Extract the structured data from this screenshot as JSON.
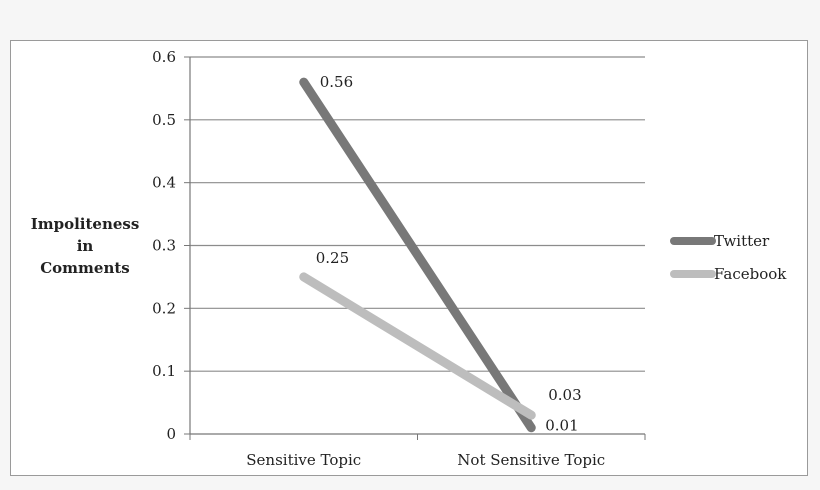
{
  "chart_data": {
    "type": "line",
    "categories": [
      "Sensitive Topic",
      "Not Sensitive Topic"
    ],
    "series": [
      {
        "name": "Twitter",
        "values": [
          0.56,
          0.01
        ],
        "color": "#787878"
      },
      {
        "name": "Facebook",
        "values": [
          0.25,
          0.03
        ],
        "color": "#bdbdbd"
      }
    ],
    "data_labels": [
      "0.56",
      "0.01",
      "0.25",
      "0.03"
    ],
    "ylabel_lines": [
      "Impoliteness",
      "in",
      "Comments"
    ],
    "yticks": [
      "0",
      "0.1",
      "0.2",
      "0.3",
      "0.4",
      "0.5",
      "0.6"
    ],
    "ylim": [
      0,
      0.6
    ],
    "grid": true,
    "legend_position": "right"
  }
}
